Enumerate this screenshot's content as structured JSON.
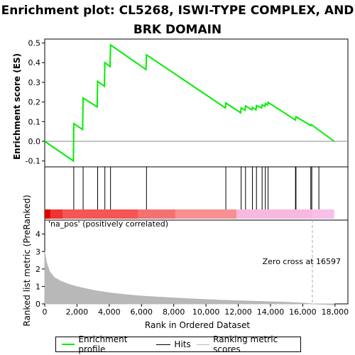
{
  "title": "Enrichment plot: CL5268, ISWI-TYPE COMPLEX, AND BRK DOMAIN",
  "colors": {
    "profile": "#00ee00",
    "hits": "#000000",
    "ranking": "#b8b8b8",
    "zero_line": "#aaaaaa"
  },
  "chart_data": {
    "type": "line",
    "x_axis": {
      "label": "Rank in Ordered Dataset",
      "ticks": [
        "0",
        "2,000",
        "4,000",
        "6,000",
        "8,000",
        "10,000",
        "12,000",
        "14,000",
        "16,000",
        "18,000"
      ],
      "range": [
        0,
        18800
      ]
    },
    "es_panel": {
      "ylabel": "Enrichment score (ES)",
      "ylim": [
        -0.13,
        0.52
      ],
      "yticks": [
        "-0.1",
        "0.0",
        "0.1",
        "0.2",
        "0.3",
        "0.4",
        "0.5"
      ],
      "series": [
        {
          "name": "Enrichment profile",
          "x": [
            0,
            1780,
            1800,
            2350,
            2380,
            3250,
            3280,
            3700,
            3730,
            4050,
            4080,
            6280,
            6310,
            11200,
            11230,
            12150,
            12180,
            12420,
            12450,
            12850,
            12880,
            13100,
            13130,
            13450,
            13480,
            13650,
            13680,
            13820,
            13850,
            15550,
            15580,
            16500,
            16530,
            17950
          ],
          "y": [
            0.0,
            -0.1,
            0.09,
            0.06,
            0.22,
            0.175,
            0.305,
            0.28,
            0.4,
            0.38,
            0.49,
            0.365,
            0.44,
            0.17,
            0.195,
            0.145,
            0.17,
            0.158,
            0.18,
            0.16,
            0.172,
            0.16,
            0.182,
            0.17,
            0.185,
            0.178,
            0.192,
            0.185,
            0.198,
            0.108,
            0.125,
            0.08,
            0.085,
            0.0
          ]
        }
      ]
    },
    "hits": {
      "name": "Hits",
      "positions": [
        1800,
        2380,
        3280,
        3730,
        4080,
        6310,
        11230,
        12180,
        12450,
        12880,
        13130,
        13480,
        13680,
        13850,
        15550,
        15580,
        16500,
        16560,
        17000
      ]
    },
    "ranking_panel": {
      "name": "Ranking metric scores",
      "ylabel": "Ranked list metric (PreRanked)",
      "ylim": [
        0,
        4.8
      ],
      "yticks": [
        "0",
        "1",
        "2",
        "3",
        "4"
      ],
      "label_pos": "'na_pos' (positively correlated)",
      "zero_cross_label": "Zero cross at 16597",
      "zero_cross": 16597,
      "n_genes": 17950,
      "curve_x": [
        0,
        100,
        300,
        600,
        1000,
        1500,
        2000,
        3000,
        4000,
        5000,
        6000,
        7000,
        8000,
        9000,
        10000,
        11000,
        12000,
        13000,
        14000,
        15000,
        16000,
        16597,
        17950
      ],
      "curve_y": [
        3.0,
        2.4,
        1.85,
        1.5,
        1.3,
        1.12,
        0.98,
        0.78,
        0.63,
        0.53,
        0.45,
        0.39,
        0.34,
        0.29,
        0.25,
        0.21,
        0.18,
        0.15,
        0.12,
        0.09,
        0.05,
        0.0,
        -0.05
      ]
    },
    "color_bar": {
      "segments": [
        {
          "from": 0,
          "to": 350,
          "color": "#e00000"
        },
        {
          "from": 350,
          "to": 1100,
          "color": "#ee3333"
        },
        {
          "from": 1100,
          "to": 5800,
          "color": "#f55555"
        },
        {
          "from": 5800,
          "to": 8100,
          "color": "#f57070"
        },
        {
          "from": 8100,
          "to": 11900,
          "color": "#f79090"
        },
        {
          "from": 11900,
          "to": 16600,
          "color": "#f8b8e0"
        },
        {
          "from": 16600,
          "to": 17950,
          "color": "#f8c0e8"
        }
      ]
    },
    "legend": [
      "Enrichment profile",
      "Hits",
      "Ranking metric scores"
    ]
  }
}
